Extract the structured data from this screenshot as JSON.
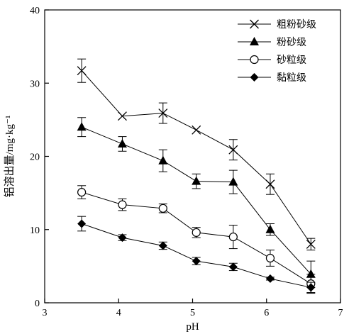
{
  "chart_data": {
    "type": "line",
    "xlabel": "pH",
    "ylabel": "铝溶出量/mg·kg⁻¹",
    "xlim": [
      3,
      7
    ],
    "ylim": [
      0,
      40
    ],
    "xticks": [
      3,
      4,
      5,
      6,
      7
    ],
    "yticks": [
      0,
      10,
      20,
      30,
      40
    ],
    "grid": false,
    "legend_position": "top-right",
    "x": [
      3.5,
      4.05,
      4.6,
      5.05,
      5.55,
      6.05,
      6.6
    ],
    "series": [
      {
        "name": "粗粉砂级",
        "marker": "x",
        "line_style": "solid",
        "values": [
          31.7,
          25.5,
          25.9,
          23.6,
          20.9,
          16.2,
          8.0
        ],
        "errors": [
          1.6,
          0,
          1.4,
          0,
          1.4,
          1.4,
          0.8
        ]
      },
      {
        "name": "粉砂级",
        "marker": "triangle-filled",
        "line_style": "solid",
        "values": [
          24.0,
          21.7,
          19.4,
          16.6,
          16.5,
          10.0,
          3.9
        ],
        "errors": [
          1.3,
          1.0,
          1.5,
          1.0,
          1.6,
          0.8,
          1.8
        ]
      },
      {
        "name": "砂粒级",
        "marker": "circle-open",
        "line_style": "solid",
        "values": [
          15.1,
          13.4,
          12.9,
          9.6,
          9.0,
          6.1,
          2.6
        ],
        "errors": [
          0.9,
          0.8,
          0.6,
          0.7,
          1.6,
          1.1,
          1.3
        ]
      },
      {
        "name": "黏粒级",
        "marker": "diamond-filled",
        "line_style": "solid",
        "values": [
          10.8,
          8.9,
          7.8,
          5.7,
          4.9,
          3.3,
          2.1
        ],
        "errors": [
          1.0,
          0.4,
          0.5,
          0.5,
          0.5,
          0.2,
          0.7
        ]
      }
    ]
  }
}
